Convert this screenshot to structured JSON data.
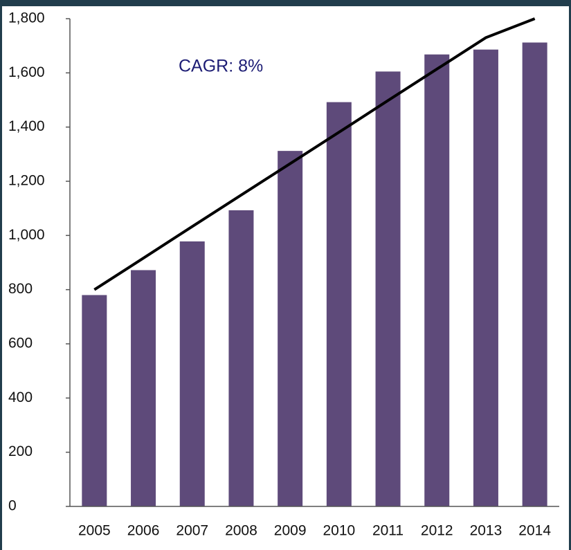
{
  "chart_data": {
    "type": "bar",
    "categories": [
      "2005",
      "2006",
      "2007",
      "2008",
      "2009",
      "2010",
      "2011",
      "2012",
      "2013",
      "2014"
    ],
    "values": [
      780,
      872,
      978,
      1093,
      1312,
      1492,
      1605,
      1668,
      1686,
      1712
    ],
    "color": "#5e4a7a",
    "line": {
      "values": [
        800,
        916,
        1033,
        1149,
        1265,
        1381,
        1498,
        1614,
        1730,
        1800
      ],
      "color": "#000000"
    },
    "annotation": "CAGR: 8%",
    "ylim": [
      0,
      1800
    ],
    "yticks": [
      0,
      {
        "value": 200,
        "label": "200"
      },
      400,
      600,
      800,
      {
        "value": 1000,
        "label": "1,000"
      },
      {
        "value": 1200,
        "label": "1,200"
      },
      {
        "value": 1400,
        "label": "1,400"
      },
      {
        "value": 1600,
        "label": "1,600"
      },
      {
        "value": 1800,
        "label": "1,800"
      }
    ]
  }
}
